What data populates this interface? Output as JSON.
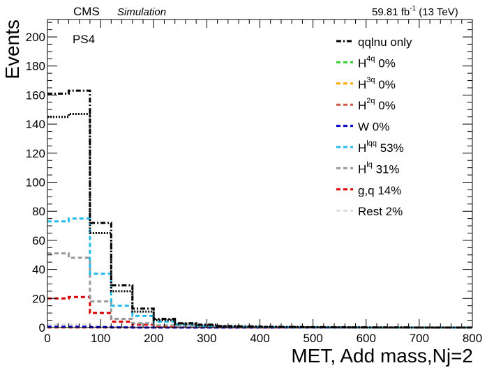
{
  "header": {
    "experiment": "CMS",
    "tag": "Simulation",
    "lumi_value": "59.81 fb",
    "lumi_exp": "-1",
    "lumi_energy": " (13 TeV)"
  },
  "chart_data": {
    "type": "line",
    "region_label": "PS4",
    "xlabel": "MET, Add mass,Nj=2",
    "ylabel": "Events",
    "xlim": [
      0,
      800
    ],
    "ylim": [
      0,
      212
    ],
    "x_ticks": [
      0,
      100,
      200,
      300,
      400,
      500,
      600,
      700,
      800
    ],
    "y_ticks": [
      0,
      20,
      40,
      60,
      80,
      100,
      120,
      140,
      160,
      180,
      200
    ],
    "bin_edges": [
      0,
      40,
      80,
      120,
      160,
      200,
      240,
      280,
      320,
      360,
      400,
      440,
      480,
      520,
      560,
      600,
      640,
      680,
      720,
      760,
      800
    ],
    "legend_position": "top-right",
    "series": [
      {
        "name_main": "qqlnu only",
        "name_sup": "",
        "name_tail": "",
        "color": "#000000",
        "dash": "dash-dot",
        "values": [
          161,
          163,
          72,
          29,
          13,
          6,
          3,
          2,
          1,
          0.8,
          0.5,
          0.4,
          0.3,
          0.2,
          0.1,
          0.1,
          0.1,
          0,
          0,
          0
        ]
      },
      {
        "name_main": "H",
        "name_sup": "4q",
        "name_tail": "  0%",
        "color": "#33cc33",
        "dash": "dash",
        "values": [
          0,
          0,
          0,
          0,
          0,
          0,
          0,
          0,
          0,
          0,
          0,
          0,
          0,
          0,
          0,
          0,
          0,
          0,
          0,
          0
        ]
      },
      {
        "name_main": "H",
        "name_sup": "3q",
        "name_tail": "  0%",
        "color": "#ffaa00",
        "dash": "dash",
        "values": [
          0,
          0,
          0,
          0,
          0,
          0,
          0,
          0,
          0,
          0,
          0,
          0,
          0,
          0,
          0,
          0,
          0,
          0,
          0,
          0
        ]
      },
      {
        "name_main": "H",
        "name_sup": "2q",
        "name_tail": "  0%",
        "color": "#cc5544",
        "dash": "dash",
        "values": [
          0,
          0,
          0,
          0,
          0,
          0,
          0,
          0,
          0,
          0,
          0,
          0,
          0,
          0,
          0,
          0,
          0,
          0,
          0,
          0
        ]
      },
      {
        "name_main": "W      0%",
        "name_sup": "",
        "name_tail": "",
        "color": "#0000cc",
        "dash": "dash",
        "values": [
          0.5,
          0.5,
          0.3,
          0.1,
          0,
          0,
          0,
          0,
          0,
          0,
          0,
          0,
          0,
          0,
          0,
          0,
          0,
          0,
          0,
          0
        ]
      },
      {
        "name_main": "H",
        "name_sup": "lqq",
        "name_tail": " 53%",
        "color": "#22bbee",
        "dash": "dash",
        "values": [
          73,
          75,
          37,
          15,
          8,
          4,
          2,
          1,
          0.5,
          0.4,
          0.3,
          0.2,
          0.2,
          0.1,
          0.1,
          0,
          0,
          0,
          0,
          0
        ]
      },
      {
        "name_main": "H",
        "name_sup": "lq",
        "name_tail": "  31%",
        "color": "#999999",
        "dash": "dash",
        "values": [
          51,
          48,
          18,
          6,
          3,
          1.5,
          1,
          0.5,
          0.3,
          0.2,
          0.1,
          0.1,
          0,
          0,
          0,
          0,
          0,
          0,
          0,
          0
        ]
      },
      {
        "name_main": "g,q       14%",
        "name_sup": "",
        "name_tail": "",
        "color": "#dd0000",
        "dash": "dash",
        "values": [
          20,
          21,
          10,
          4,
          2,
          1,
          0.5,
          0.3,
          0.2,
          0.1,
          0,
          0,
          0,
          0,
          0,
          0,
          0,
          0,
          0,
          0
        ]
      },
      {
        "name_main": "Rest    2%",
        "name_sup": "",
        "name_tail": "",
        "color": "#dddddd",
        "dash": "dash",
        "values": [
          2,
          2,
          1,
          0.5,
          0.2,
          0.1,
          0,
          0,
          0,
          0,
          0,
          0,
          0,
          0,
          0,
          0,
          0,
          0,
          0,
          0
        ]
      }
    ],
    "extra_series": [
      {
        "color": "#000000",
        "dash": "dot",
        "values": [
          145,
          147,
          65,
          25,
          11,
          5,
          2.5,
          1.5,
          0.8,
          0.5,
          0.4,
          0.3,
          0.2,
          0.1,
          0.1,
          0,
          0,
          0,
          0,
          0
        ]
      }
    ]
  }
}
